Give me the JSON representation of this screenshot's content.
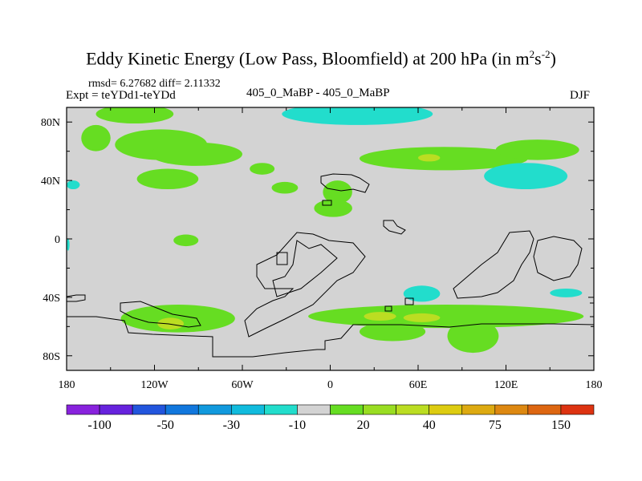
{
  "title": {
    "main": "Eddy Kinetic Energy (Low Pass, Bloomfield) at 200 hPa (in m",
    "sup1": "2",
    "mid": "s",
    "sup2": "-2",
    "close": ")"
  },
  "stats_text": "rmsd= 6.27682 diff= 2.11332",
  "expt_text": "Expt = teYDd1-teYDd",
  "subtitle": "405_0_MaBP - 405_0_MaBP",
  "season": "DJF",
  "colors": {
    "background_land": "#d3d3d3",
    "green": "#66dd22",
    "yellowgreen": "#bbdd22",
    "cyan": "#22ddcc",
    "coast": "#000000"
  },
  "chart_data": {
    "type": "heatmap",
    "projection": "cylindrical-equidistant",
    "xlim": [
      -180,
      180
    ],
    "ylim": [
      -90,
      90
    ],
    "x_ticks": [
      {
        "lon": -180,
        "label": "180"
      },
      {
        "lon": -120,
        "label": "120W"
      },
      {
        "lon": -60,
        "label": "60W"
      },
      {
        "lon": 0,
        "label": "0"
      },
      {
        "lon": 60,
        "label": "60E"
      },
      {
        "lon": 120,
        "label": "120E"
      },
      {
        "lon": 180,
        "label": "180"
      }
    ],
    "y_ticks": [
      {
        "lat": 80,
        "label": "80N"
      },
      {
        "lat": 40,
        "label": "40N"
      },
      {
        "lat": 0,
        "label": "0"
      },
      {
        "lat": -40,
        "label": "40S"
      },
      {
        "lat": -80,
        "label": "80S"
      }
    ],
    "colorbar": {
      "colors": [
        "#8822dd",
        "#6622dd",
        "#2255dd",
        "#1177dd",
        "#1199dd",
        "#11bbdd",
        "#22ddcc",
        "#d3d3d3",
        "#66dd22",
        "#99dd22",
        "#bbdd22",
        "#ddcc11",
        "#ddaa11",
        "#dd8811",
        "#dd6611",
        "#dd3311"
      ],
      "labels": [
        {
          "after_box": 1,
          "text": "-100"
        },
        {
          "after_box": 3,
          "text": "-50"
        },
        {
          "after_box": 5,
          "text": "-30"
        },
        {
          "after_box": 7,
          "text": "-10"
        },
        {
          "after_box": 9,
          "text": "20"
        },
        {
          "after_box": 11,
          "text": "40"
        },
        {
          "after_box": 13,
          "text": "75"
        },
        {
          "after_box": 15,
          "text": "150"
        }
      ]
    },
    "anomaly_regions": [
      {
        "level": "green",
        "lon": [
          -160,
          -107
        ],
        "lat": [
          79,
          92
        ]
      },
      {
        "level": "green",
        "lon": [
          -147,
          -84
        ],
        "lat": [
          54,
          75
        ]
      },
      {
        "level": "green",
        "lon": [
          -123,
          -60
        ],
        "lat": [
          50,
          66
        ]
      },
      {
        "level": "green",
        "lon": [
          -170,
          -150
        ],
        "lat": [
          60,
          78
        ]
      },
      {
        "level": "green",
        "lon": [
          -55,
          -38
        ],
        "lat": [
          44,
          52
        ]
      },
      {
        "level": "green",
        "lon": [
          -132,
          -90
        ],
        "lat": [
          34,
          48
        ]
      },
      {
        "level": "green",
        "lon": [
          -40,
          -22
        ],
        "lat": [
          31,
          39
        ]
      },
      {
        "level": "green",
        "lon": [
          -107,
          -90
        ],
        "lat": [
          -5,
          3
        ]
      },
      {
        "level": "green",
        "lon": [
          -5,
          15
        ],
        "lat": [
          24,
          40
        ]
      },
      {
        "level": "green",
        "lon": [
          -11,
          15
        ],
        "lat": [
          15,
          27
        ]
      },
      {
        "level": "green",
        "lon": [
          20,
          135
        ],
        "lat": [
          47,
          63
        ]
      },
      {
        "level": "green",
        "lon": [
          113,
          170
        ],
        "lat": [
          54,
          68
        ]
      },
      {
        "level": "yellowgreen",
        "lon": [
          60,
          75
        ],
        "lat": [
          53,
          58
        ]
      },
      {
        "level": "green",
        "lon": [
          -143,
          -65
        ],
        "lat": [
          -64,
          -45
        ]
      },
      {
        "level": "green",
        "lon": [
          -15,
          173
        ],
        "lat": [
          -61,
          -45
        ]
      },
      {
        "level": "green",
        "lon": [
          20,
          65
        ],
        "lat": [
          -70,
          -57
        ]
      },
      {
        "level": "green",
        "lon": [
          80,
          115
        ],
        "lat": [
          -78,
          -55
        ]
      },
      {
        "level": "yellowgreen",
        "lon": [
          -118,
          -100
        ],
        "lat": [
          -62,
          -54
        ]
      },
      {
        "level": "yellowgreen",
        "lon": [
          23,
          45
        ],
        "lat": [
          -56,
          -50
        ]
      },
      {
        "level": "yellowgreen",
        "lon": [
          50,
          75
        ],
        "lat": [
          -57,
          -51
        ]
      },
      {
        "level": "cyan",
        "lon": [
          -33,
          70
        ],
        "lat": [
          78,
          93
        ]
      },
      {
        "level": "cyan",
        "lon": [
          105,
          162
        ],
        "lat": [
          34,
          52
        ]
      },
      {
        "level": "cyan",
        "lon": [
          50,
          75
        ],
        "lat": [
          -43,
          -32
        ]
      },
      {
        "level": "cyan",
        "lon": [
          150,
          172
        ],
        "lat": [
          -40,
          -34
        ]
      },
      {
        "level": "cyan",
        "lon": [
          -180,
          -171
        ],
        "lat": [
          34,
          40
        ]
      },
      {
        "level": "cyan",
        "lon": [
          -180,
          -178
        ],
        "lat": [
          -8,
          0
        ]
      }
    ]
  }
}
